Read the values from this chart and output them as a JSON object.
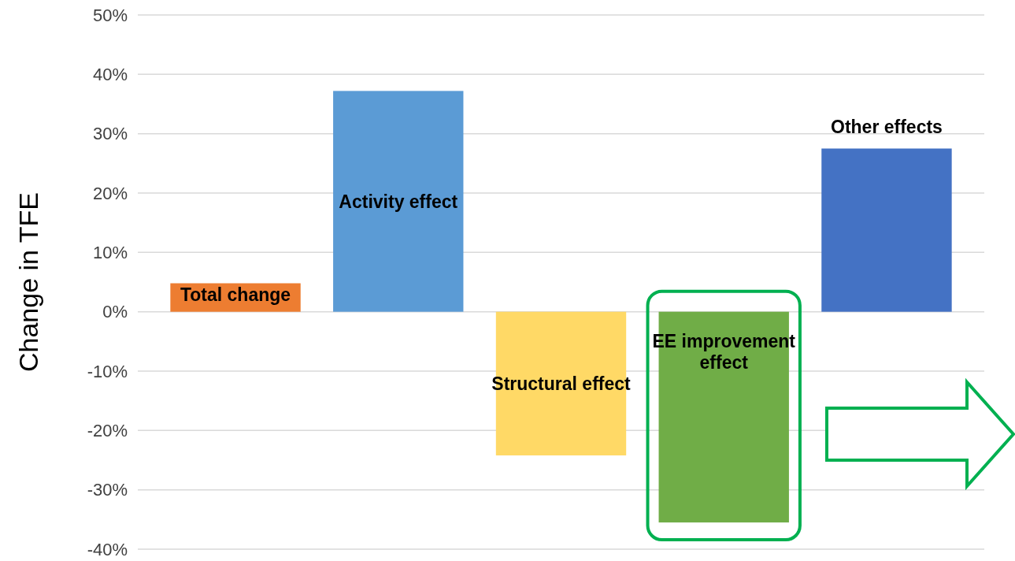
{
  "chart_data": {
    "type": "bar",
    "ylabel": "Change in TFE",
    "categories": [
      "Total change",
      "Activity effect",
      "Structural effect",
      "EE improvement effect",
      "Other effects"
    ],
    "values": [
      4.8,
      37.2,
      -24.2,
      -35.5,
      27.5
    ],
    "colors": [
      "#ed7d31",
      "#5b9bd5",
      "#ffd966",
      "#70ad47",
      "#4472c4"
    ],
    "ylim": [
      -40,
      50
    ],
    "yticks": [
      {
        "value": -40,
        "label": "-40%"
      },
      {
        "value": -30,
        "label": "-30%"
      },
      {
        "value": -20,
        "label": "-20%"
      },
      {
        "value": -10,
        "label": "-10%"
      },
      {
        "value": 0,
        "label": "0%"
      },
      {
        "value": 10,
        "label": "10%"
      },
      {
        "value": 20,
        "label": "20%"
      },
      {
        "value": 30,
        "label": "30%"
      },
      {
        "value": 40,
        "label": "40%"
      },
      {
        "value": 50,
        "label": "50%"
      }
    ],
    "grid": "y",
    "tick_labels": "y"
  }
}
